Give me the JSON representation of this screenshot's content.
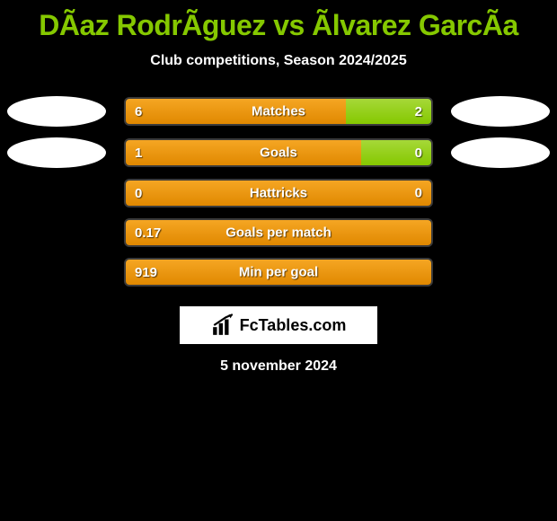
{
  "title": "DÃ­az RodrÃ­guez vs Ãlvarez GarcÃ­a",
  "subtitle": "Club competitions, Season 2024/2025",
  "logo_text": "FcTables.com",
  "date": "5 november 2024",
  "colors": {
    "accent_green": "#85c800",
    "bar_orange_top": "#f5a623",
    "bar_orange_bottom": "#e08800",
    "bar_green_top": "#a6d838",
    "bar_green_bottom": "#85c800",
    "background": "#000000",
    "text": "#ffffff"
  },
  "rows": [
    {
      "label": "Matches",
      "left_value": "6",
      "right_value": "2",
      "left_pct": 72,
      "show_ovals": true
    },
    {
      "label": "Goals",
      "left_value": "1",
      "right_value": "0",
      "left_pct": 77,
      "show_ovals": true
    },
    {
      "label": "Hattricks",
      "left_value": "0",
      "right_value": "0",
      "left_pct": 100,
      "show_ovals": false,
      "full_orange": true
    },
    {
      "label": "Goals per match",
      "left_value": "0.17",
      "right_value": "",
      "left_pct": 100,
      "show_ovals": false,
      "full_orange": true
    },
    {
      "label": "Min per goal",
      "left_value": "919",
      "right_value": "",
      "left_pct": 100,
      "show_ovals": false,
      "full_orange": true
    }
  ]
}
